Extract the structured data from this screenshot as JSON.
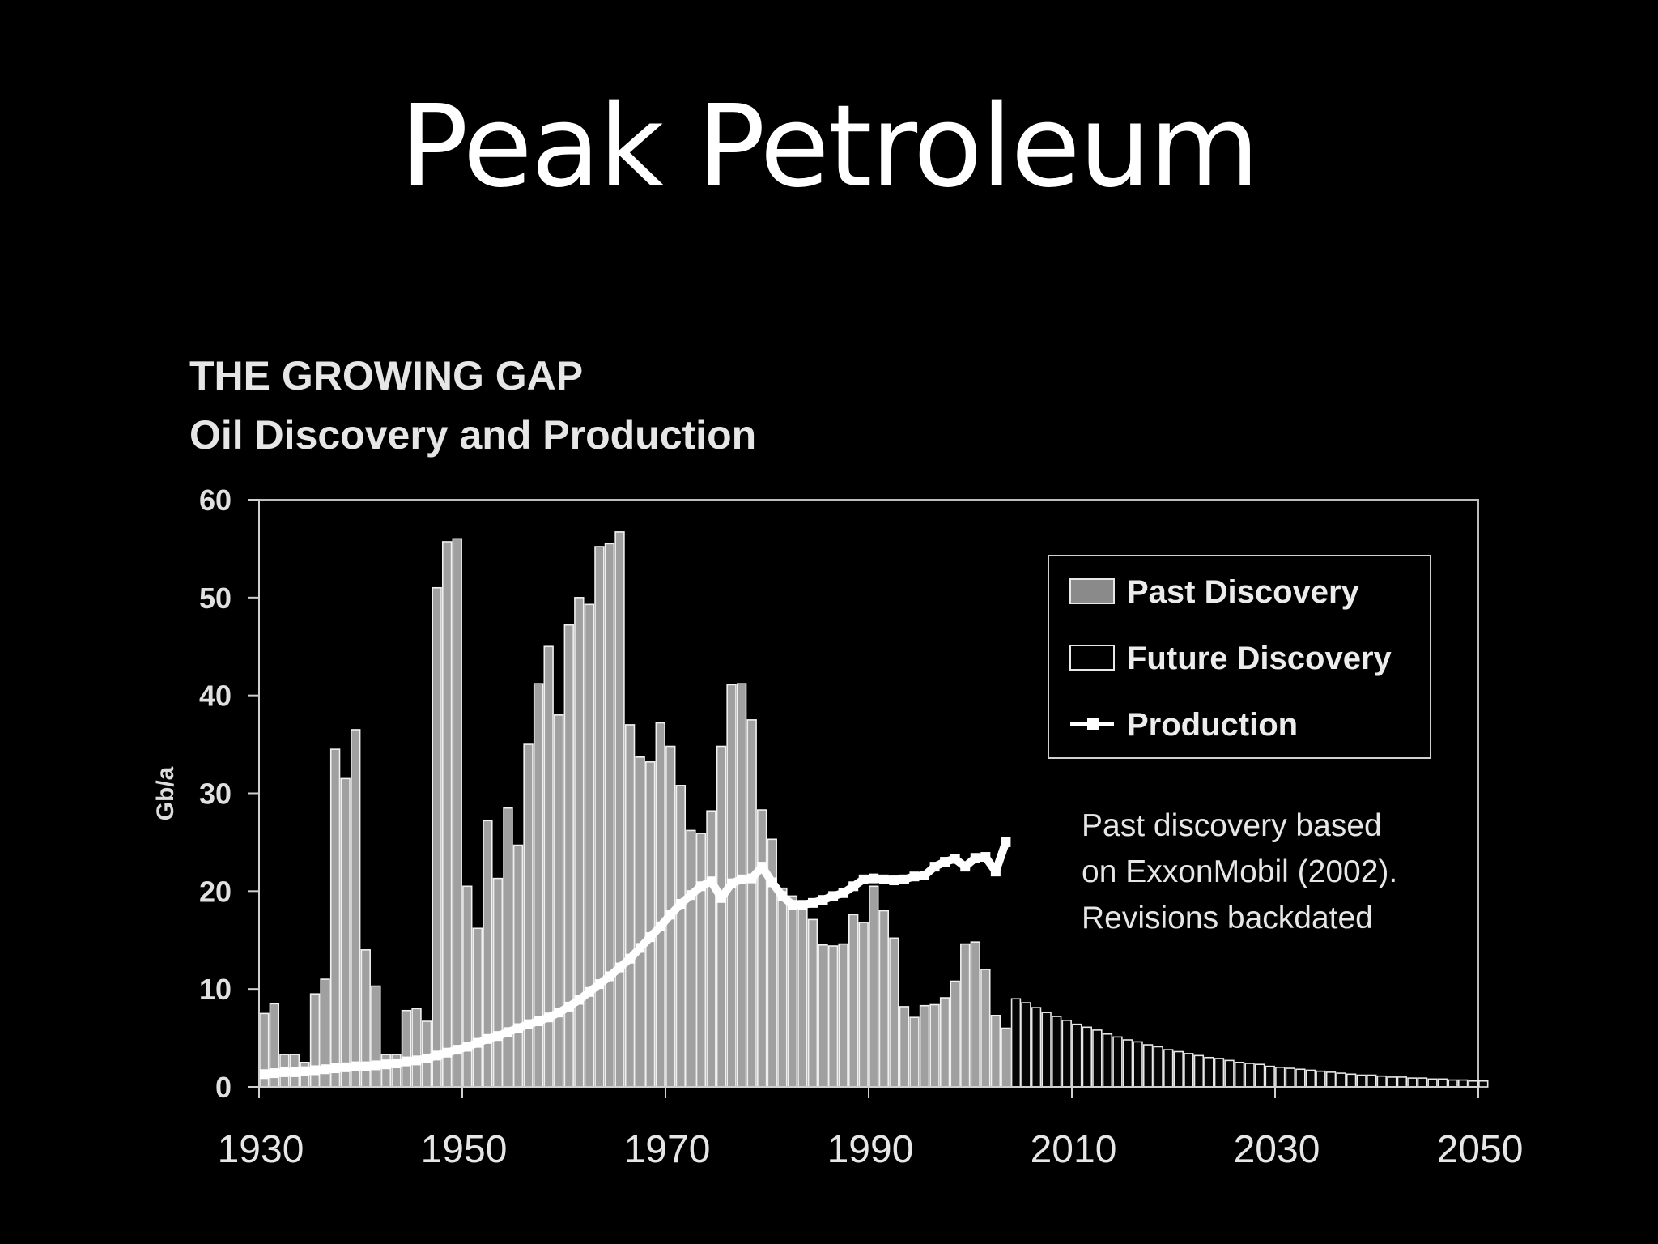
{
  "slide": {
    "title": "Peak Petroleum"
  },
  "chart_data": {
    "type": "bar",
    "title": "THE GROWING GAP",
    "subtitle": "Oil Discovery and Production",
    "xlabel": "",
    "ylabel": "Gb/a",
    "xlim": [
      1930,
      2050
    ],
    "ylim": [
      0,
      60
    ],
    "yticks": [
      "0",
      "10",
      "20",
      "30",
      "40",
      "50",
      "60"
    ],
    "xticks": [
      "1930",
      "1950",
      "1970",
      "1990",
      "2010",
      "2030",
      "2050"
    ],
    "legend": {
      "placement": "top-right",
      "items": [
        "Past Discovery",
        "Future Discovery",
        "Production"
      ]
    },
    "annotation": [
      "Past discovery based",
      "on ExxonMobil (2002).",
      "Revisions backdated"
    ],
    "series": [
      {
        "name": "Past Discovery",
        "start_year": 1930,
        "values": [
          7.5,
          8.5,
          3.3,
          3.3,
          2.5,
          9.5,
          11,
          34.5,
          31.5,
          36.5,
          14,
          10.3,
          3.3,
          3.3,
          7.8,
          8,
          6.7,
          51,
          55.7,
          56,
          20.5,
          16.2,
          27.2,
          21.3,
          28.5,
          24.7,
          35,
          41.2,
          45,
          38,
          47.2,
          50,
          49.3,
          55.2,
          55.5,
          56.7,
          37,
          33.7,
          33.2,
          37.2,
          34.8,
          30.8,
          26.2,
          25.9,
          28.2,
          34.8,
          41.1,
          41.2,
          37.5,
          28.3,
          25.3,
          20.3,
          19.5,
          19,
          17.1,
          14.5,
          14.4,
          14.6,
          17.6,
          16.8,
          20.5,
          18,
          15.2,
          8.2,
          7.1,
          8.3,
          8.4,
          9.1,
          10.8,
          14.6,
          14.8,
          12,
          7.3,
          6
        ]
      },
      {
        "name": "Future Discovery",
        "start_year": 2004,
        "values": [
          9,
          8.6,
          8.1,
          7.6,
          7.2,
          6.8,
          6.4,
          6.1,
          5.8,
          5.4,
          5.1,
          4.8,
          4.6,
          4.3,
          4.1,
          3.8,
          3.6,
          3.4,
          3.2,
          3,
          2.9,
          2.7,
          2.5,
          2.4,
          2.3,
          2.1,
          2,
          1.9,
          1.8,
          1.7,
          1.6,
          1.5,
          1.4,
          1.3,
          1.2,
          1.2,
          1.1,
          1,
          1,
          0.9,
          0.9,
          0.8,
          0.8,
          0.7,
          0.7,
          0.6,
          0.6
        ]
      },
      {
        "name": "Production",
        "start_year": 1930,
        "values": [
          1.3,
          1.4,
          1.5,
          1.5,
          1.6,
          1.7,
          1.8,
          1.9,
          2,
          2.1,
          2.1,
          2.2,
          2.3,
          2.4,
          2.6,
          2.7,
          2.9,
          3.2,
          3.5,
          3.8,
          4.1,
          4.5,
          4.9,
          5.2,
          5.6,
          6,
          6.4,
          6.7,
          7.1,
          7.6,
          8.2,
          8.9,
          9.7,
          10.5,
          11.3,
          12.2,
          13.1,
          14.2,
          15.3,
          16.4,
          17.6,
          18.7,
          19.6,
          20.5,
          21,
          19.3,
          20.8,
          21.2,
          21.3,
          22.5,
          20.9,
          19.5,
          18.6,
          18.6,
          18.8,
          19.1,
          19.5,
          19.8,
          20.5,
          21.2,
          21.3,
          21.2,
          21.1,
          21.2,
          21.5,
          21.6,
          22.5,
          23,
          23.3,
          22.5,
          23.4,
          23.5,
          22,
          25
        ]
      }
    ]
  }
}
